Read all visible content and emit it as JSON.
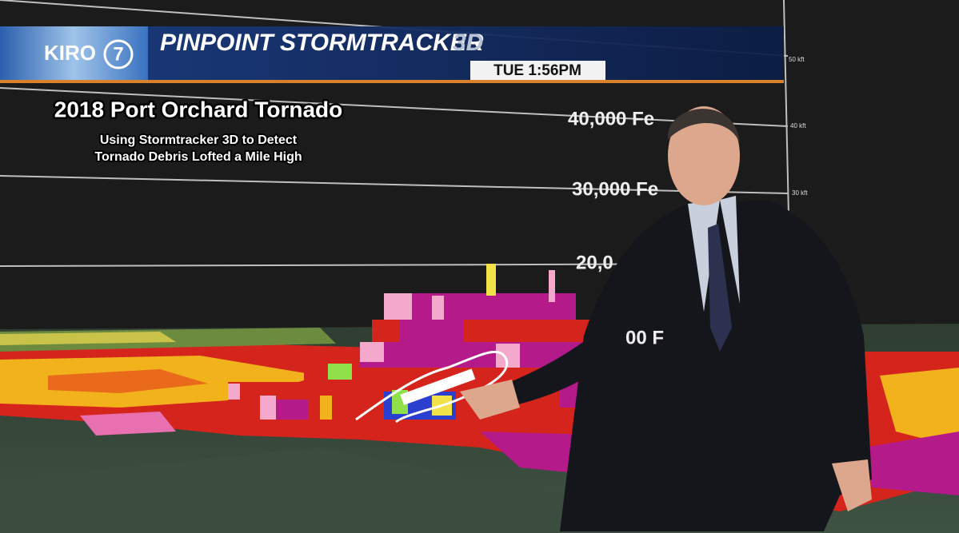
{
  "broadcast": {
    "logo": {
      "name": "KIRO",
      "channel": "7"
    },
    "banner": {
      "title": "PINPOINT STORMTRACKER",
      "title_suffix": "3D",
      "time": "TUE 1:56PM"
    },
    "altitude_scale": {
      "small_labels": [
        "50 kft",
        "40 kft",
        "30 kft"
      ],
      "large_labels": [
        "40,000 Fe",
        "30,000 Fe",
        "20,0",
        "00 F"
      ]
    },
    "caption": {
      "title": "2018 Port Orchard Tornado",
      "lines": [
        "Using Stormtracker 3D to Detect",
        "Tornado Debris Lofted a Mile High"
      ]
    }
  }
}
